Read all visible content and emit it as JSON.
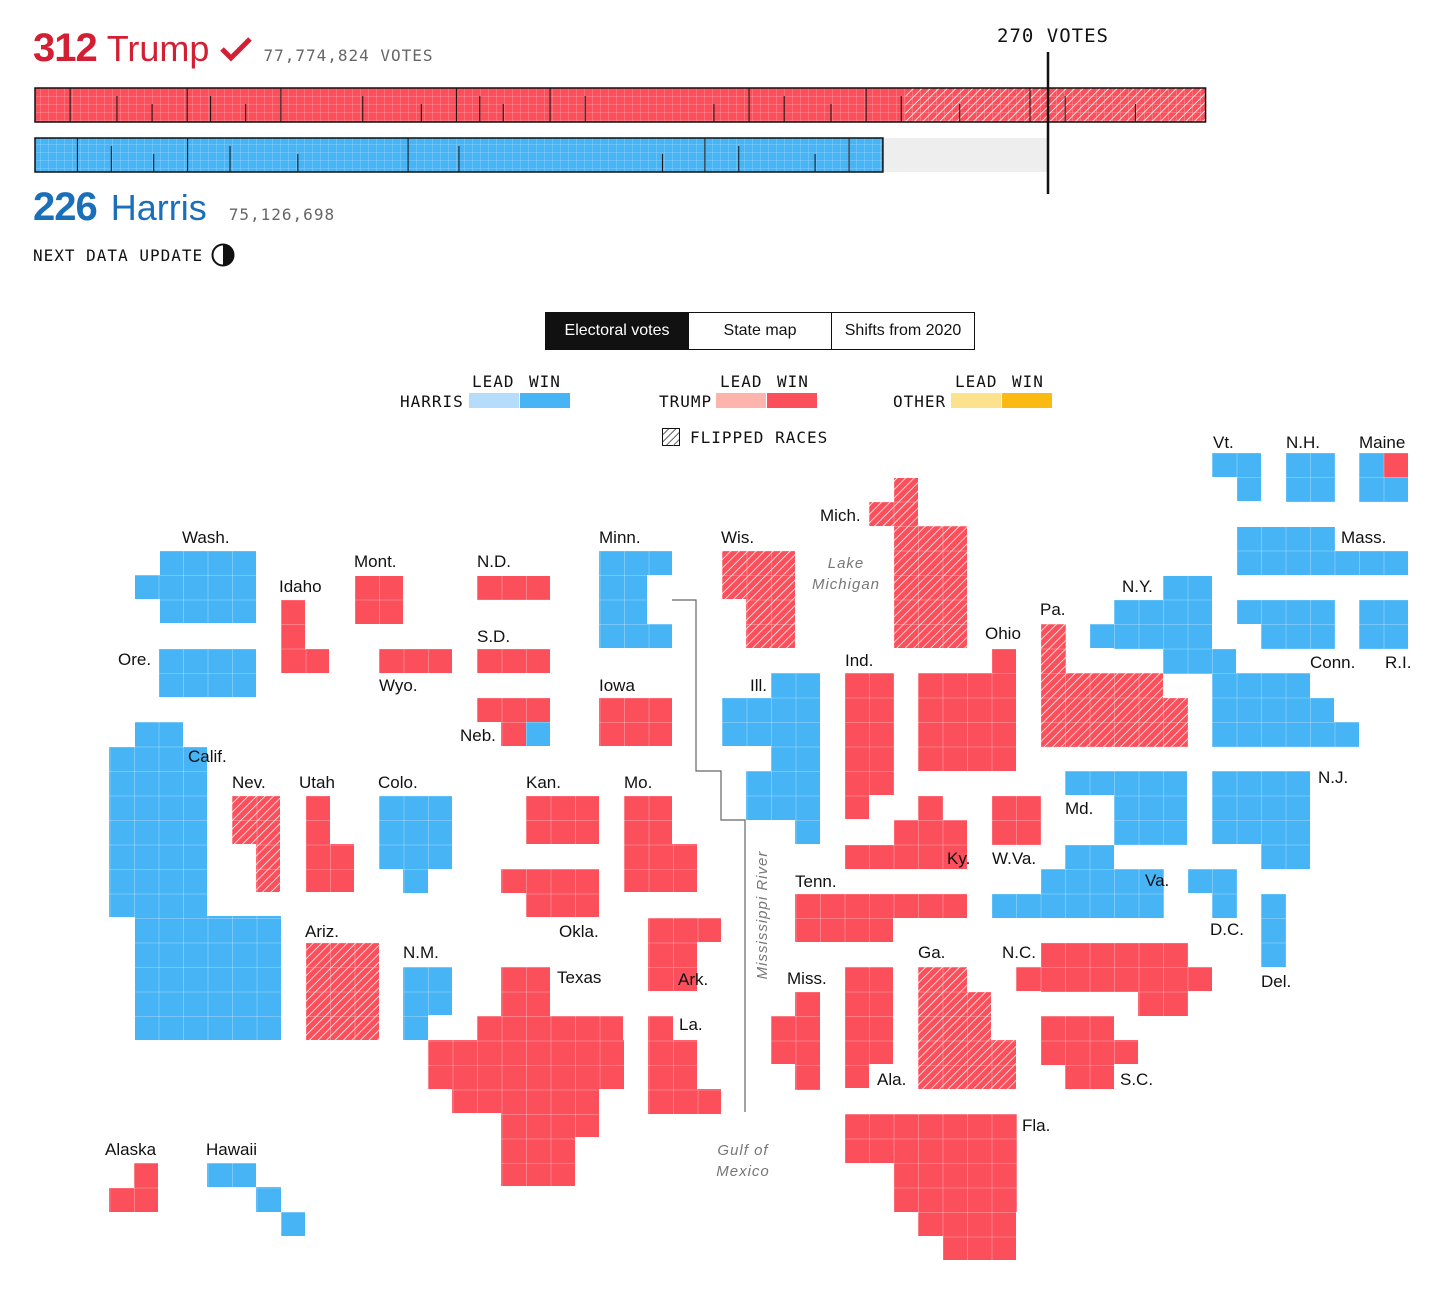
{
  "header": {
    "trump": {
      "ev": "312",
      "name": "Trump",
      "votes": "77,774,824 VOTES"
    },
    "harris": {
      "ev": "226",
      "name": "Harris",
      "votes": "75,126,698"
    },
    "threshold_label": "270 VOTES",
    "next_update": "NEXT DATA UPDATE"
  },
  "tabs": [
    "Electoral votes",
    "State map",
    "Shifts from 2020"
  ],
  "legend": {
    "lead": "LEAD",
    "win": "WIN",
    "harris": "HARRIS",
    "trump": "TRUMP",
    "other": "OTHER",
    "flipped": "FLIPPED RACES"
  },
  "colors": {
    "trump_win": "#fb4f5b",
    "trump_lead": "#fdb4ad",
    "harris_win": "#47b4f6",
    "harris_lead": "#b5dcfb",
    "other_win": "#fbba12",
    "other_lead": "#fde28d",
    "threshold_line": "#111111"
  },
  "progress": {
    "total_electoral_votes": 538,
    "trump_ev": 312,
    "harris_ev": 226,
    "threshold": 270
  },
  "geo_labels": {
    "lake": "Lake Michigan",
    "river": "Mississippi River",
    "gulf": "Gulf of Mexico"
  },
  "states": [
    {
      "name": "Wash.",
      "winner": "harris"
    },
    {
      "name": "Ore.",
      "winner": "harris"
    },
    {
      "name": "Calif.",
      "winner": "harris"
    },
    {
      "name": "Idaho",
      "winner": "trump"
    },
    {
      "name": "Mont.",
      "winner": "trump"
    },
    {
      "name": "Wyo.",
      "winner": "trump"
    },
    {
      "name": "Nev.",
      "winner": "trump",
      "flipped": true
    },
    {
      "name": "Utah",
      "winner": "trump"
    },
    {
      "name": "Colo.",
      "winner": "harris"
    },
    {
      "name": "Ariz.",
      "winner": "trump",
      "flipped": true
    },
    {
      "name": "N.M.",
      "winner": "harris"
    },
    {
      "name": "N.D.",
      "winner": "trump"
    },
    {
      "name": "S.D.",
      "winner": "trump"
    },
    {
      "name": "Neb.",
      "winner": "trump"
    },
    {
      "name": "Kan.",
      "winner": "trump"
    },
    {
      "name": "Okla.",
      "winner": "trump"
    },
    {
      "name": "Texas",
      "winner": "trump"
    },
    {
      "name": "Minn.",
      "winner": "harris"
    },
    {
      "name": "Iowa",
      "winner": "trump"
    },
    {
      "name": "Mo.",
      "winner": "trump"
    },
    {
      "name": "Ark.",
      "winner": "trump"
    },
    {
      "name": "La.",
      "winner": "trump"
    },
    {
      "name": "Wis.",
      "winner": "trump",
      "flipped": true
    },
    {
      "name": "Ill.",
      "winner": "harris"
    },
    {
      "name": "Mich.",
      "winner": "trump",
      "flipped": true
    },
    {
      "name": "Ind.",
      "winner": "trump"
    },
    {
      "name": "Ohio",
      "winner": "trump"
    },
    {
      "name": "Ky.",
      "winner": "trump"
    },
    {
      "name": "Tenn.",
      "winner": "trump"
    },
    {
      "name": "Miss.",
      "winner": "trump"
    },
    {
      "name": "Ala.",
      "winner": "trump"
    },
    {
      "name": "Ga.",
      "winner": "trump",
      "flipped": true
    },
    {
      "name": "Fla.",
      "winner": "trump"
    },
    {
      "name": "S.C.",
      "winner": "trump"
    },
    {
      "name": "N.C.",
      "winner": "trump"
    },
    {
      "name": "Va.",
      "winner": "harris"
    },
    {
      "name": "W.Va.",
      "winner": "trump"
    },
    {
      "name": "Md.",
      "winner": "harris"
    },
    {
      "name": "D.C.",
      "winner": "harris"
    },
    {
      "name": "Del.",
      "winner": "harris"
    },
    {
      "name": "Pa.",
      "winner": "trump",
      "flipped": true
    },
    {
      "name": "N.J.",
      "winner": "harris"
    },
    {
      "name": "N.Y.",
      "winner": "harris"
    },
    {
      "name": "Conn.",
      "winner": "harris"
    },
    {
      "name": "R.I.",
      "winner": "harris"
    },
    {
      "name": "Mass.",
      "winner": "harris"
    },
    {
      "name": "Vt.",
      "winner": "harris"
    },
    {
      "name": "N.H.",
      "winner": "harris"
    },
    {
      "name": "Maine",
      "winner": "harris"
    },
    {
      "name": "Alaska",
      "winner": "trump"
    },
    {
      "name": "Hawaii",
      "winner": "harris"
    }
  ]
}
